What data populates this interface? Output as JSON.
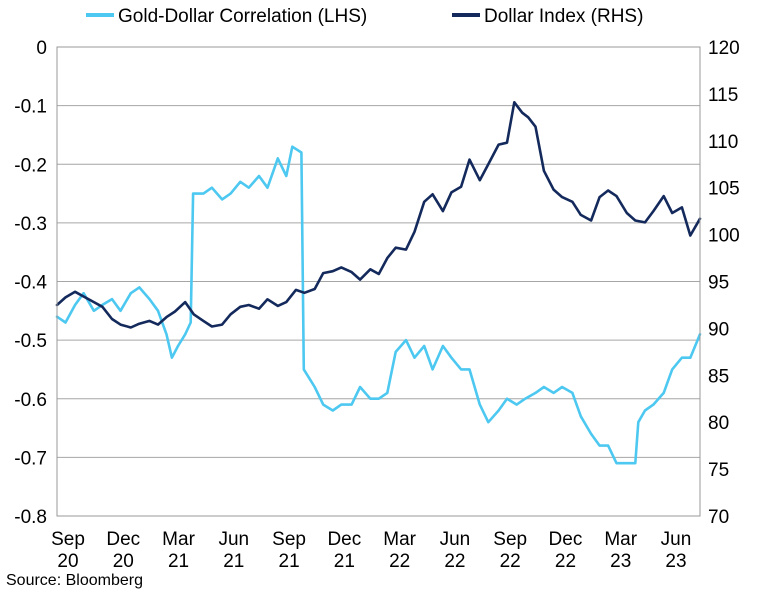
{
  "chart_data": {
    "type": "line",
    "title": "",
    "source": "Source: Bloomberg",
    "x_tick_labels": [
      {
        "month": "Sep",
        "year": "20"
      },
      {
        "month": "Dec",
        "year": "20"
      },
      {
        "month": "Mar",
        "year": "21"
      },
      {
        "month": "Jun",
        "year": "21"
      },
      {
        "month": "Sep",
        "year": "21"
      },
      {
        "month": "Dec",
        "year": "21"
      },
      {
        "month": "Mar",
        "year": "22"
      },
      {
        "month": "Jun",
        "year": "22"
      },
      {
        "month": "Sep",
        "year": "22"
      },
      {
        "month": "Dec",
        "year": "22"
      },
      {
        "month": "Mar",
        "year": "23"
      },
      {
        "month": "Jun",
        "year": "23"
      }
    ],
    "x_range": [
      "2020-09-01",
      "2023-07-31"
    ],
    "y_left": {
      "min": -0.8,
      "max": 0,
      "ticks": [
        0,
        -0.1,
        -0.2,
        -0.3,
        -0.4,
        -0.5,
        -0.6,
        -0.7,
        -0.8
      ],
      "tick_labels": [
        "0",
        "-0.1",
        "-0.2",
        "-0.3",
        "-0.4",
        "-0.5",
        "-0.6",
        "-0.7",
        "-0.8"
      ]
    },
    "y_right": {
      "min": 70,
      "max": 120,
      "ticks": [
        120,
        115,
        110,
        105,
        100,
        95,
        90,
        85,
        80,
        75,
        70
      ],
      "tick_labels": [
        "120",
        "115",
        "110",
        "105",
        "100",
        "95",
        "90",
        "85",
        "80",
        "75",
        "70"
      ]
    },
    "grid": "horizontal",
    "legend_position": "top",
    "series": [
      {
        "name": "Gold-Dollar Correlation (LHS)",
        "axis": "left",
        "color": "#4dc8f0",
        "points": [
          [
            "2020-09-01",
            -0.46
          ],
          [
            "2020-09-15",
            -0.47
          ],
          [
            "2020-10-01",
            -0.44
          ],
          [
            "2020-10-15",
            -0.42
          ],
          [
            "2020-11-01",
            -0.45
          ],
          [
            "2020-11-15",
            -0.44
          ],
          [
            "2020-12-01",
            -0.43
          ],
          [
            "2020-12-15",
            -0.45
          ],
          [
            "2021-01-01",
            -0.42
          ],
          [
            "2021-01-15",
            -0.41
          ],
          [
            "2021-02-01",
            -0.43
          ],
          [
            "2021-02-15",
            -0.45
          ],
          [
            "2021-03-01",
            -0.49
          ],
          [
            "2021-03-10",
            -0.53
          ],
          [
            "2021-03-20",
            -0.51
          ],
          [
            "2021-04-01",
            -0.49
          ],
          [
            "2021-04-10",
            -0.47
          ],
          [
            "2021-04-14",
            -0.25
          ],
          [
            "2021-05-01",
            -0.25
          ],
          [
            "2021-05-15",
            -0.24
          ],
          [
            "2021-06-01",
            -0.26
          ],
          [
            "2021-06-15",
            -0.25
          ],
          [
            "2021-07-01",
            -0.23
          ],
          [
            "2021-07-15",
            -0.24
          ],
          [
            "2021-08-01",
            -0.22
          ],
          [
            "2021-08-15",
            -0.24
          ],
          [
            "2021-09-01",
            -0.19
          ],
          [
            "2021-09-15",
            -0.22
          ],
          [
            "2021-09-25",
            -0.17
          ],
          [
            "2021-10-10",
            -0.18
          ],
          [
            "2021-10-14",
            -0.55
          ],
          [
            "2021-11-01",
            -0.58
          ],
          [
            "2021-11-15",
            -0.61
          ],
          [
            "2021-12-01",
            -0.62
          ],
          [
            "2021-12-15",
            -0.61
          ],
          [
            "2022-01-01",
            -0.61
          ],
          [
            "2022-01-15",
            -0.58
          ],
          [
            "2022-02-01",
            -0.6
          ],
          [
            "2022-02-15",
            -0.6
          ],
          [
            "2022-03-01",
            -0.59
          ],
          [
            "2022-03-15",
            -0.52
          ],
          [
            "2022-04-01",
            -0.5
          ],
          [
            "2022-04-15",
            -0.53
          ],
          [
            "2022-05-01",
            -0.51
          ],
          [
            "2022-05-15",
            -0.55
          ],
          [
            "2022-06-01",
            -0.51
          ],
          [
            "2022-06-15",
            -0.53
          ],
          [
            "2022-07-01",
            -0.55
          ],
          [
            "2022-07-15",
            -0.55
          ],
          [
            "2022-08-01",
            -0.61
          ],
          [
            "2022-08-15",
            -0.64
          ],
          [
            "2022-09-01",
            -0.62
          ],
          [
            "2022-09-15",
            -0.6
          ],
          [
            "2022-10-01",
            -0.61
          ],
          [
            "2022-10-15",
            -0.6
          ],
          [
            "2022-11-01",
            -0.59
          ],
          [
            "2022-11-15",
            -0.58
          ],
          [
            "2022-12-01",
            -0.59
          ],
          [
            "2022-12-15",
            -0.58
          ],
          [
            "2023-01-01",
            -0.59
          ],
          [
            "2023-01-15",
            -0.63
          ],
          [
            "2023-02-01",
            -0.66
          ],
          [
            "2023-02-15",
            -0.68
          ],
          [
            "2023-03-01",
            -0.68
          ],
          [
            "2023-03-15",
            -0.71
          ],
          [
            "2023-04-01",
            -0.71
          ],
          [
            "2023-04-15",
            -0.71
          ],
          [
            "2023-04-20",
            -0.64
          ],
          [
            "2023-05-01",
            -0.62
          ],
          [
            "2023-05-15",
            -0.61
          ],
          [
            "2023-06-01",
            -0.59
          ],
          [
            "2023-06-15",
            -0.55
          ],
          [
            "2023-07-01",
            -0.53
          ],
          [
            "2023-07-15",
            -0.53
          ],
          [
            "2023-07-31",
            -0.49
          ]
        ]
      },
      {
        "name": "Dollar Index (RHS)",
        "axis": "right",
        "color": "#142a5c",
        "points": [
          [
            "2020-09-01",
            92.5
          ],
          [
            "2020-09-15",
            93.3
          ],
          [
            "2020-10-01",
            93.9
          ],
          [
            "2020-10-15",
            93.4
          ],
          [
            "2020-11-01",
            92.8
          ],
          [
            "2020-11-15",
            92.3
          ],
          [
            "2020-12-01",
            91.0
          ],
          [
            "2020-12-15",
            90.4
          ],
          [
            "2021-01-01",
            90.1
          ],
          [
            "2021-01-15",
            90.5
          ],
          [
            "2021-02-01",
            90.8
          ],
          [
            "2021-02-15",
            90.4
          ],
          [
            "2021-03-01",
            91.2
          ],
          [
            "2021-03-15",
            91.8
          ],
          [
            "2021-04-01",
            92.8
          ],
          [
            "2021-04-15",
            91.5
          ],
          [
            "2021-05-01",
            90.8
          ],
          [
            "2021-05-15",
            90.2
          ],
          [
            "2021-06-01",
            90.4
          ],
          [
            "2021-06-15",
            91.5
          ],
          [
            "2021-07-01",
            92.3
          ],
          [
            "2021-07-15",
            92.5
          ],
          [
            "2021-08-01",
            92.1
          ],
          [
            "2021-08-15",
            93.1
          ],
          [
            "2021-09-01",
            92.4
          ],
          [
            "2021-09-15",
            92.8
          ],
          [
            "2021-10-01",
            94.1
          ],
          [
            "2021-10-15",
            93.8
          ],
          [
            "2021-11-01",
            94.2
          ],
          [
            "2021-11-15",
            95.9
          ],
          [
            "2021-12-01",
            96.1
          ],
          [
            "2021-12-15",
            96.5
          ],
          [
            "2022-01-01",
            96.0
          ],
          [
            "2022-01-15",
            95.2
          ],
          [
            "2022-02-01",
            96.3
          ],
          [
            "2022-02-15",
            95.8
          ],
          [
            "2022-03-01",
            97.5
          ],
          [
            "2022-03-15",
            98.6
          ],
          [
            "2022-04-01",
            98.4
          ],
          [
            "2022-04-15",
            100.3
          ],
          [
            "2022-05-01",
            103.5
          ],
          [
            "2022-05-15",
            104.3
          ],
          [
            "2022-06-01",
            102.5
          ],
          [
            "2022-06-15",
            104.5
          ],
          [
            "2022-07-01",
            105.1
          ],
          [
            "2022-07-15",
            108.0
          ],
          [
            "2022-08-01",
            105.8
          ],
          [
            "2022-08-15",
            107.5
          ],
          [
            "2022-09-01",
            109.6
          ],
          [
            "2022-09-15",
            109.8
          ],
          [
            "2022-09-27",
            114.1
          ],
          [
            "2022-10-10",
            113.0
          ],
          [
            "2022-10-20",
            112.5
          ],
          [
            "2022-11-01",
            111.5
          ],
          [
            "2022-11-15",
            106.8
          ],
          [
            "2022-12-01",
            104.8
          ],
          [
            "2022-12-15",
            104.0
          ],
          [
            "2023-01-01",
            103.5
          ],
          [
            "2023-01-15",
            102.1
          ],
          [
            "2023-02-01",
            101.5
          ],
          [
            "2023-02-15",
            104.0
          ],
          [
            "2023-03-01",
            104.7
          ],
          [
            "2023-03-15",
            104.1
          ],
          [
            "2023-04-01",
            102.3
          ],
          [
            "2023-04-15",
            101.5
          ],
          [
            "2023-05-01",
            101.3
          ],
          [
            "2023-05-15",
            102.5
          ],
          [
            "2023-06-01",
            104.1
          ],
          [
            "2023-06-15",
            102.3
          ],
          [
            "2023-07-01",
            102.9
          ],
          [
            "2023-07-15",
            99.9
          ],
          [
            "2023-07-31",
            101.7
          ]
        ]
      }
    ]
  }
}
